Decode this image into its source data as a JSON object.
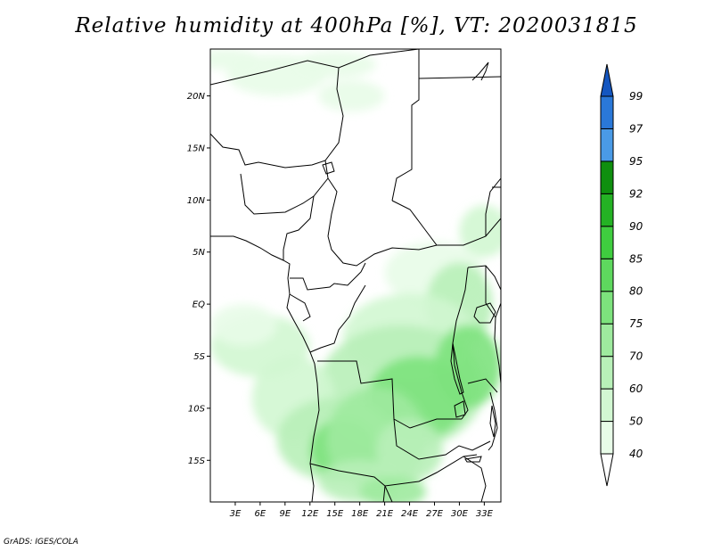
{
  "title": "Relative humidity at 400hPa [%], VT: 2020031815",
  "credit": "GrADS: IGES/COLA",
  "map": {
    "lon_ticks": [
      "3E",
      "6E",
      "9E",
      "12E",
      "15E",
      "18E",
      "21E",
      "24E",
      "27E",
      "30E",
      "33E"
    ],
    "lat_ticks": [
      "20N",
      "15N",
      "10N",
      "5N",
      "EQ",
      "5S",
      "10S",
      "15S"
    ],
    "lon_range": [
      0,
      35
    ],
    "lat_range": [
      -19,
      24.5
    ]
  },
  "colorbar": {
    "levels": [
      "40",
      "50",
      "60",
      "70",
      "75",
      "80",
      "85",
      "90",
      "92",
      "95",
      "97",
      "99"
    ],
    "colors": [
      "#ffffff",
      "#e8fce8",
      "#d2f7d2",
      "#b8f0b8",
      "#9eea9e",
      "#7de27d",
      "#5ed85e",
      "#3fcd3f",
      "#24b224",
      "#0f8f0f",
      "#4a9ae6",
      "#2a78d8",
      "#1456c0"
    ]
  },
  "humidity_regions": [
    {
      "lon": 2,
      "lat": 23.5,
      "rx": 4,
      "ry": 1,
      "level": 1
    },
    {
      "lon": 8,
      "lat": 22,
      "rx": 6,
      "ry": 2,
      "level": 1
    },
    {
      "lon": 15,
      "lat": 23,
      "rx": 5,
      "ry": 1.3,
      "level": 1
    },
    {
      "lon": 17,
      "lat": 20,
      "rx": 4,
      "ry": 1.5,
      "level": 1
    },
    {
      "lon": 33,
      "lat": 7,
      "rx": 3,
      "ry": 2.5,
      "level": 2
    },
    {
      "lon": 27,
      "lat": 3,
      "rx": 6,
      "ry": 3,
      "level": 1
    },
    {
      "lon": 30,
      "lat": 0,
      "rx": 4,
      "ry": 4,
      "level": 3
    },
    {
      "lon": 24,
      "lat": -3,
      "rx": 8,
      "ry": 4,
      "level": 2
    },
    {
      "lon": 23,
      "lat": -8,
      "rx": 10,
      "ry": 6,
      "level": 3
    },
    {
      "lon": 25,
      "lat": -9,
      "rx": 6,
      "ry": 4,
      "level": 5
    },
    {
      "lon": 31,
      "lat": -6,
      "rx": 4,
      "ry": 4,
      "level": 5
    },
    {
      "lon": 6,
      "lat": -4,
      "rx": 6,
      "ry": 3,
      "level": 2
    },
    {
      "lon": 10,
      "lat": -9,
      "rx": 5,
      "ry": 4,
      "level": 2
    },
    {
      "lon": 15,
      "lat": -13,
      "rx": 7,
      "ry": 4,
      "level": 3
    },
    {
      "lon": 16,
      "lat": -14,
      "rx": 4,
      "ry": 3,
      "level": 5
    },
    {
      "lon": 20,
      "lat": -13,
      "rx": 6,
      "ry": 5,
      "level": 4
    },
    {
      "lon": 24,
      "lat": -14,
      "rx": 4,
      "ry": 3,
      "level": 3
    },
    {
      "lon": 18,
      "lat": -17,
      "rx": 5,
      "ry": 2,
      "level": 3
    },
    {
      "lon": 22,
      "lat": -18,
      "rx": 4,
      "ry": 1.5,
      "level": 4
    },
    {
      "lon": 4,
      "lat": -2,
      "rx": 4,
      "ry": 2,
      "level": 1
    }
  ]
}
